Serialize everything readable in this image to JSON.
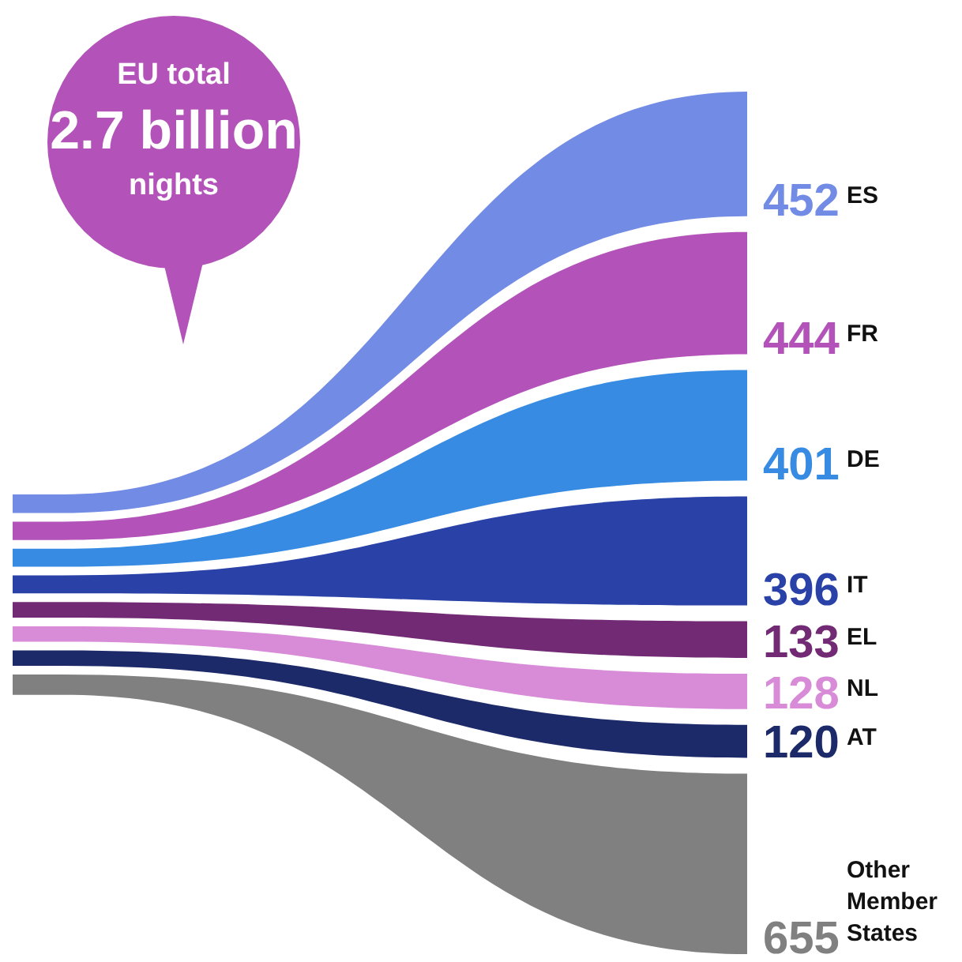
{
  "chart_data": {
    "type": "other",
    "annotations": [
      "EU total",
      "2.7 billion",
      "nights"
    ],
    "categories": [
      "ES",
      "FR",
      "DE",
      "IT",
      "EL",
      "NL",
      "AT",
      "Other Member States"
    ],
    "values": [
      452,
      444,
      401,
      396,
      133,
      128,
      120,
      655
    ],
    "colors": [
      "#728ce6",
      "#b353b9",
      "#388be2",
      "#2a42a8",
      "#722a75",
      "#d88cd8",
      "#1d2a6a",
      "#808080"
    ],
    "data_labels": true
  }
}
